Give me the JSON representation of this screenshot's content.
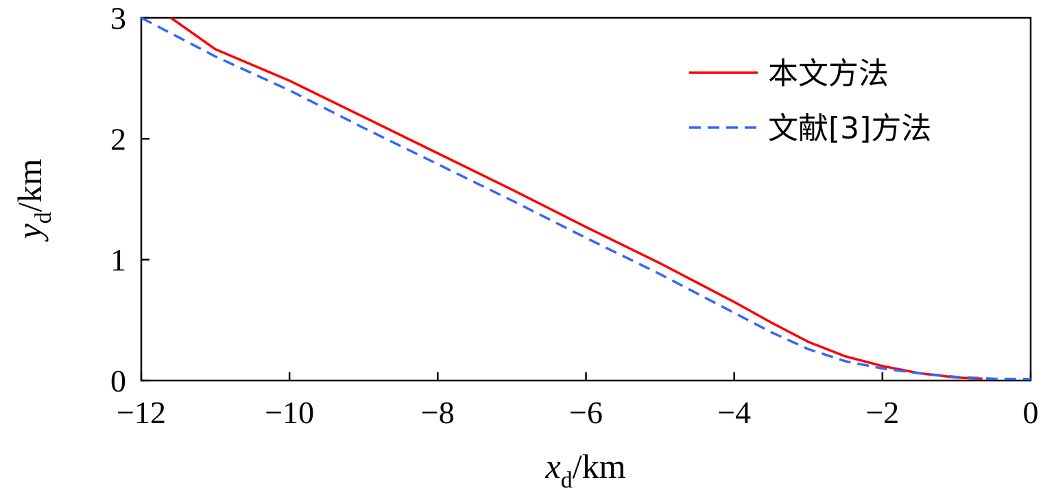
{
  "chart_data": {
    "type": "line",
    "xlabel": {
      "main": "x",
      "sub": "d",
      "unit": "/km"
    },
    "ylabel": {
      "main": "y",
      "sub": "d",
      "unit": "/km"
    },
    "xlim": [
      -12,
      0
    ],
    "ylim": [
      0,
      3
    ],
    "xticks": [
      -12,
      -10,
      -8,
      -6,
      -4,
      -2,
      0
    ],
    "yticks": [
      0,
      1,
      2,
      3
    ],
    "xtick_labels": [
      "−12",
      "−10",
      "−8",
      "−6",
      "−4",
      "−2",
      "0"
    ],
    "ytick_labels": [
      "0",
      "1",
      "2",
      "3"
    ],
    "grid": false,
    "legend_position": "top-right",
    "series": [
      {
        "name": "本文方法",
        "color": "#ff0000",
        "dash": "solid",
        "x": [
          -11.6,
          -11.0,
          -10.0,
          -9.0,
          -8.0,
          -7.0,
          -6.0,
          -5.0,
          -4.0,
          -3.5,
          -3.0,
          -2.5,
          -2.0,
          -1.5,
          -1.0,
          -0.65
        ],
        "y": [
          3.0,
          2.74,
          2.48,
          2.18,
          1.88,
          1.58,
          1.27,
          0.97,
          0.65,
          0.48,
          0.32,
          0.2,
          0.12,
          0.06,
          0.025,
          0.015
        ]
      },
      {
        "name": "文献[3]方法",
        "color": "#3366ff",
        "dash": "dashed",
        "x": [
          -12.0,
          -11.0,
          -10.0,
          -9.0,
          -8.0,
          -7.0,
          -6.0,
          -5.0,
          -4.0,
          -3.5,
          -3.0,
          -2.5,
          -2.0,
          -1.5,
          -1.0,
          -0.5,
          0.0
        ],
        "y": [
          3.0,
          2.68,
          2.4,
          2.09,
          1.79,
          1.49,
          1.18,
          0.88,
          0.56,
          0.4,
          0.26,
          0.16,
          0.1,
          0.06,
          0.03,
          0.015,
          0.012
        ]
      }
    ]
  }
}
